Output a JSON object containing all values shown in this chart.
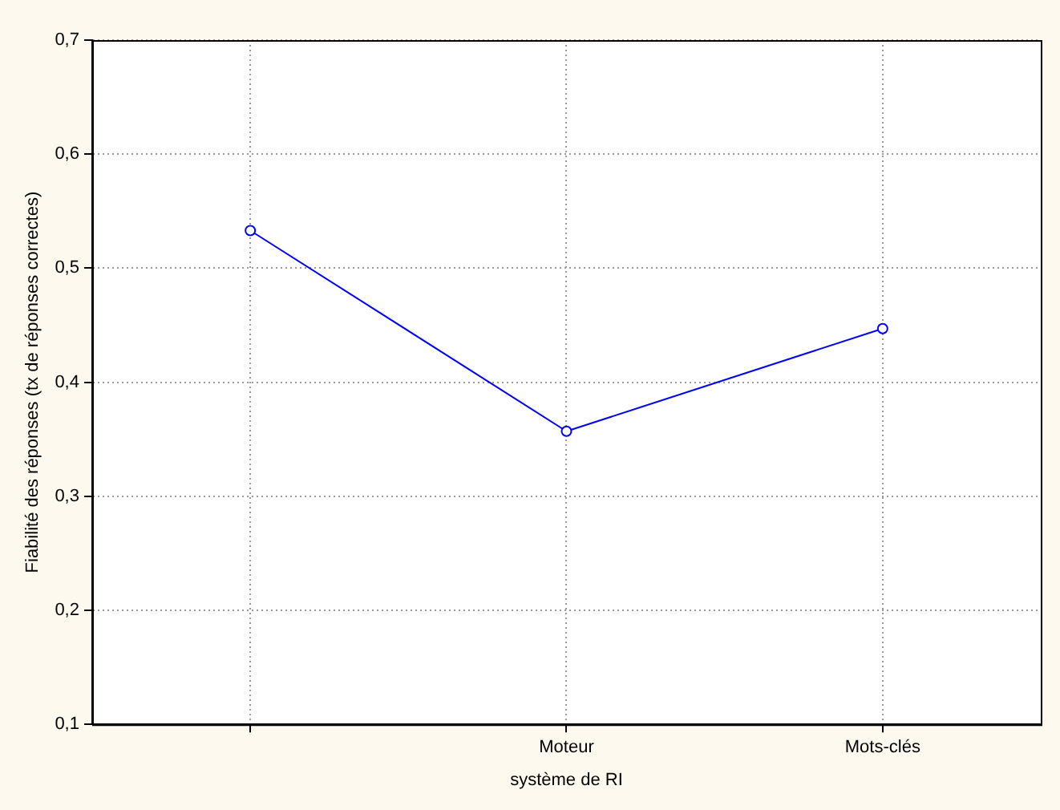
{
  "chart_data": {
    "type": "line",
    "xlabel": "système de RI",
    "ylabel": "Fiabilité des réponses (tx de réponses correctes)",
    "categories": [
      null,
      "Moteur",
      "Mots-clés"
    ],
    "series": [
      {
        "color": "#0000ff",
        "values": [
          0.533,
          0.357,
          0.447
        ]
      }
    ],
    "ylim": [
      0.1,
      0.7
    ],
    "yticks": [
      {
        "value": 0.1,
        "label": "0,1"
      },
      {
        "value": 0.2,
        "label": "0,2"
      },
      {
        "value": 0.3,
        "label": "0,3"
      },
      {
        "value": 0.4,
        "label": "0,4"
      },
      {
        "value": 0.5,
        "label": "0,5"
      },
      {
        "value": 0.6,
        "label": "0,6"
      },
      {
        "value": 0.7,
        "label": "0,7"
      }
    ],
    "grid": true,
    "marker": "circle",
    "line_style": "solid",
    "legend": false
  }
}
